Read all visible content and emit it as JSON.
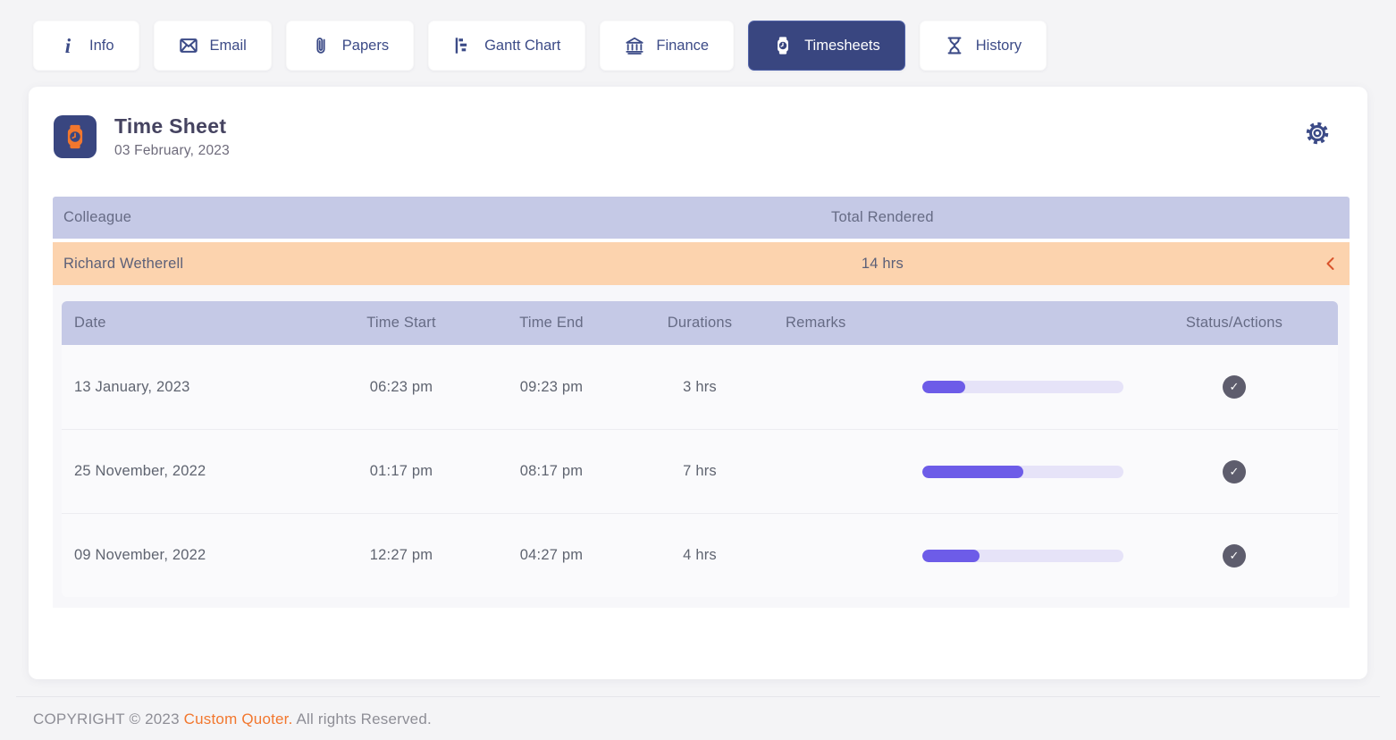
{
  "tabs": [
    {
      "label": "Info",
      "icon": "info-icon",
      "active": false
    },
    {
      "label": "Email",
      "icon": "email-icon",
      "active": false
    },
    {
      "label": "Papers",
      "icon": "paperclip-icon",
      "active": false
    },
    {
      "label": "Gantt Chart",
      "icon": "gantt-chart-icon",
      "active": false
    },
    {
      "label": "Finance",
      "icon": "bank-icon",
      "active": false
    },
    {
      "label": "Timesheets",
      "icon": "watch-icon",
      "active": true
    },
    {
      "label": "History",
      "icon": "hourglass-icon",
      "active": false
    }
  ],
  "card": {
    "title": "Time Sheet",
    "subtitle": "03 February, 2023",
    "header_icon": "watch-icon",
    "settings_icon": "gear-icon"
  },
  "summary_table": {
    "columns": [
      "Colleague",
      "Total Rendered"
    ],
    "row": {
      "colleague": "Richard Wetherell",
      "total_rendered": "14 hrs",
      "expanded": true,
      "chevron_icon": "collapse-chevron-icon"
    }
  },
  "detail_table": {
    "columns": [
      "Date",
      "Time Start",
      "Time End",
      "Durations",
      "Remarks",
      "Status/Actions"
    ],
    "rows": [
      {
        "date": "13 January, 2023",
        "time_start": "06:23 pm",
        "time_end": "09:23 pm",
        "duration": "3 hrs",
        "progress_pct": 21.4,
        "status_icon": "check-icon"
      },
      {
        "date": "25 November, 2022",
        "time_start": "01:17 pm",
        "time_end": "08:17 pm",
        "duration": "7 hrs",
        "progress_pct": 50,
        "status_icon": "check-icon"
      },
      {
        "date": "09 November, 2022",
        "time_start": "12:27 pm",
        "time_end": "04:27 pm",
        "duration": "4 hrs",
        "progress_pct": 28.6,
        "status_icon": "check-icon"
      }
    ]
  },
  "footer": {
    "prefix": "COPYRIGHT © 2023 ",
    "link": "Custom Quoter.",
    "suffix": " All rights Reserved."
  },
  "colors": {
    "page_bg": "#f4f4f6",
    "card_bg": "#ffffff",
    "navy": "#3c4b87",
    "navy_active": "#394680",
    "navy_active_border": "#5062a8",
    "title": "#454360",
    "subtitle": "#6e6b7b",
    "lavender": "#c5c9e6",
    "header_text": "#666b85",
    "peach": "#fcd3ae",
    "peach_text": "#5c6078",
    "orange": "#f2772e",
    "chevron": "#d9532b",
    "purple": "#6d5ce8",
    "purple_track": "#e6e3f8",
    "row_text": "#5f6470",
    "panel_bg": "#f7f7fa",
    "rows_bg": "#fafafc",
    "check_bg": "#5e5d6d",
    "divider": "#ececf1",
    "footer_text": "#8e8e96"
  }
}
